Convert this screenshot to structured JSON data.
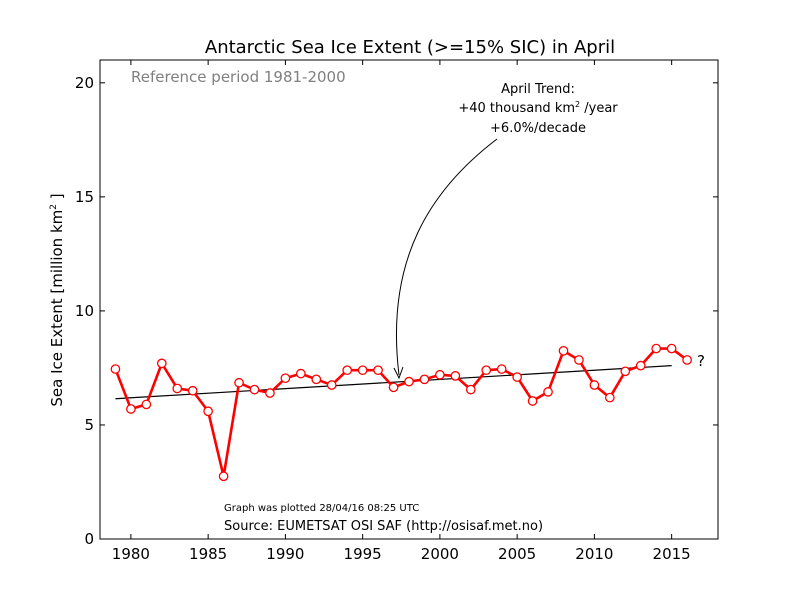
{
  "chart_data": {
    "type": "line",
    "title": "Antarctic Sea Ice Extent (>=15% SIC) in April",
    "subtitle": "Reference period 1981-2000",
    "ylabel_main": "Sea Ice Extent [million km",
    "ylabel_sup": "2",
    "ylabel_end": " ]",
    "xlabel": "",
    "xlim": [
      1978,
      2018
    ],
    "ylim": [
      0,
      21
    ],
    "xticks": [
      "1980",
      "1985",
      "1990",
      "1995",
      "2000",
      "2005",
      "2010",
      "2015"
    ],
    "yticks": [
      "0",
      "5",
      "10",
      "15",
      "20"
    ],
    "grid": false,
    "series": [
      {
        "color": "#ff0000",
        "x": [
          1979,
          1980,
          1981,
          1982,
          1983,
          1984,
          1985,
          1986,
          1987,
          1988,
          1989,
          1990,
          1991,
          1992,
          1993,
          1994,
          1995,
          1996,
          1997,
          1998,
          1999,
          2000,
          2001,
          2002,
          2003,
          2004,
          2005,
          2006,
          2007,
          2008,
          2009,
          2010,
          2011,
          2012,
          2013,
          2014,
          2015,
          2016
        ],
        "y": [
          7.45,
          5.7,
          5.9,
          7.7,
          6.6,
          6.5,
          5.6,
          2.75,
          6.85,
          6.55,
          6.4,
          7.05,
          7.25,
          7.0,
          6.75,
          7.4,
          7.4,
          7.4,
          6.65,
          6.9,
          7.0,
          7.2,
          7.15,
          6.55,
          7.4,
          7.45,
          7.1,
          6.05,
          6.45,
          8.25,
          7.85,
          6.75,
          6.2,
          7.35,
          7.6,
          8.35,
          8.35,
          7.85
        ]
      }
    ],
    "trend": {
      "x": [
        1979,
        2015
      ],
      "y": [
        6.15,
        7.6
      ],
      "color": "#000000"
    },
    "annotations": {
      "trend_line1": "April Trend:",
      "trend_line2_pre": "+40 thousand km",
      "trend_line2_sup": "2",
      "trend_line2_post": " /year",
      "trend_line3": "+6.0%/decade",
      "question_mark": "?",
      "plotted": "Graph was plotted 28/04/16 08:25 UTC",
      "source": "Source: EUMETSAT OSI SAF (http://osisaf.met.no)"
    }
  }
}
